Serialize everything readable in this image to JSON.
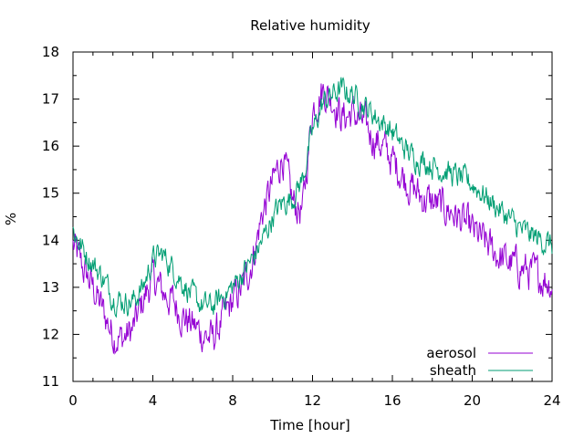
{
  "chart_data": {
    "type": "line",
    "title": "Relative humidity",
    "xlabel": "Time [hour]",
    "ylabel": "%",
    "xlim": [
      0,
      24
    ],
    "ylim": [
      11,
      18
    ],
    "grid": false,
    "legend_position": "bottom-right",
    "x_ticks": [
      "0",
      "4",
      "8",
      "12",
      "16",
      "20",
      "24"
    ],
    "y_ticks": [
      "11",
      "12",
      "13",
      "14",
      "15",
      "16",
      "17",
      "18"
    ],
    "x": [
      0,
      0.5,
      1,
      1.5,
      2,
      2.5,
      3,
      3.5,
      4,
      4.5,
      5,
      5.5,
      6,
      6.5,
      7,
      7.5,
      8,
      8.5,
      9,
      9.5,
      10,
      10.5,
      11,
      11.5,
      12,
      12.5,
      13,
      13.5,
      14,
      14.5,
      15,
      15.5,
      16,
      16.5,
      17,
      17.5,
      18,
      18.5,
      19,
      19.5,
      20,
      20.5,
      21,
      21.5,
      22,
      22.5,
      23,
      23.5,
      24
    ],
    "series": [
      {
        "name": "aerosol",
        "color": "#9400d3",
        "values": [
          13.9,
          13.4,
          13.0,
          12.5,
          12.0,
          11.9,
          12.1,
          12.7,
          13.2,
          12.9,
          12.7,
          12.4,
          12.2,
          12.0,
          11.9,
          12.3,
          12.7,
          13.0,
          13.6,
          14.6,
          15.2,
          15.8,
          14.8,
          14.6,
          16.8,
          17.2,
          17.0,
          16.6,
          16.7,
          16.5,
          16.2,
          16.0,
          15.7,
          15.4,
          15.1,
          14.9,
          14.8,
          14.7,
          14.6,
          14.4,
          14.2,
          14.0,
          13.8,
          13.6,
          13.5,
          13.4,
          13.3,
          13.2,
          13.1
        ]
      },
      {
        "name": "sheath",
        "color": "#009e73",
        "values": [
          14.2,
          13.8,
          13.5,
          13.2,
          12.8,
          12.7,
          12.7,
          13.0,
          13.6,
          13.7,
          13.4,
          13.1,
          12.8,
          12.6,
          12.6,
          12.8,
          13.0,
          13.3,
          13.6,
          14.0,
          14.5,
          14.8,
          14.9,
          15.3,
          16.3,
          16.9,
          17.1,
          17.2,
          17.1,
          16.9,
          16.7,
          16.5,
          16.3,
          16.0,
          15.8,
          15.7,
          15.6,
          15.5,
          15.4,
          15.3,
          15.2,
          15.0,
          14.8,
          14.6,
          14.4,
          14.2,
          14.1,
          14.0,
          13.9
        ]
      }
    ]
  }
}
